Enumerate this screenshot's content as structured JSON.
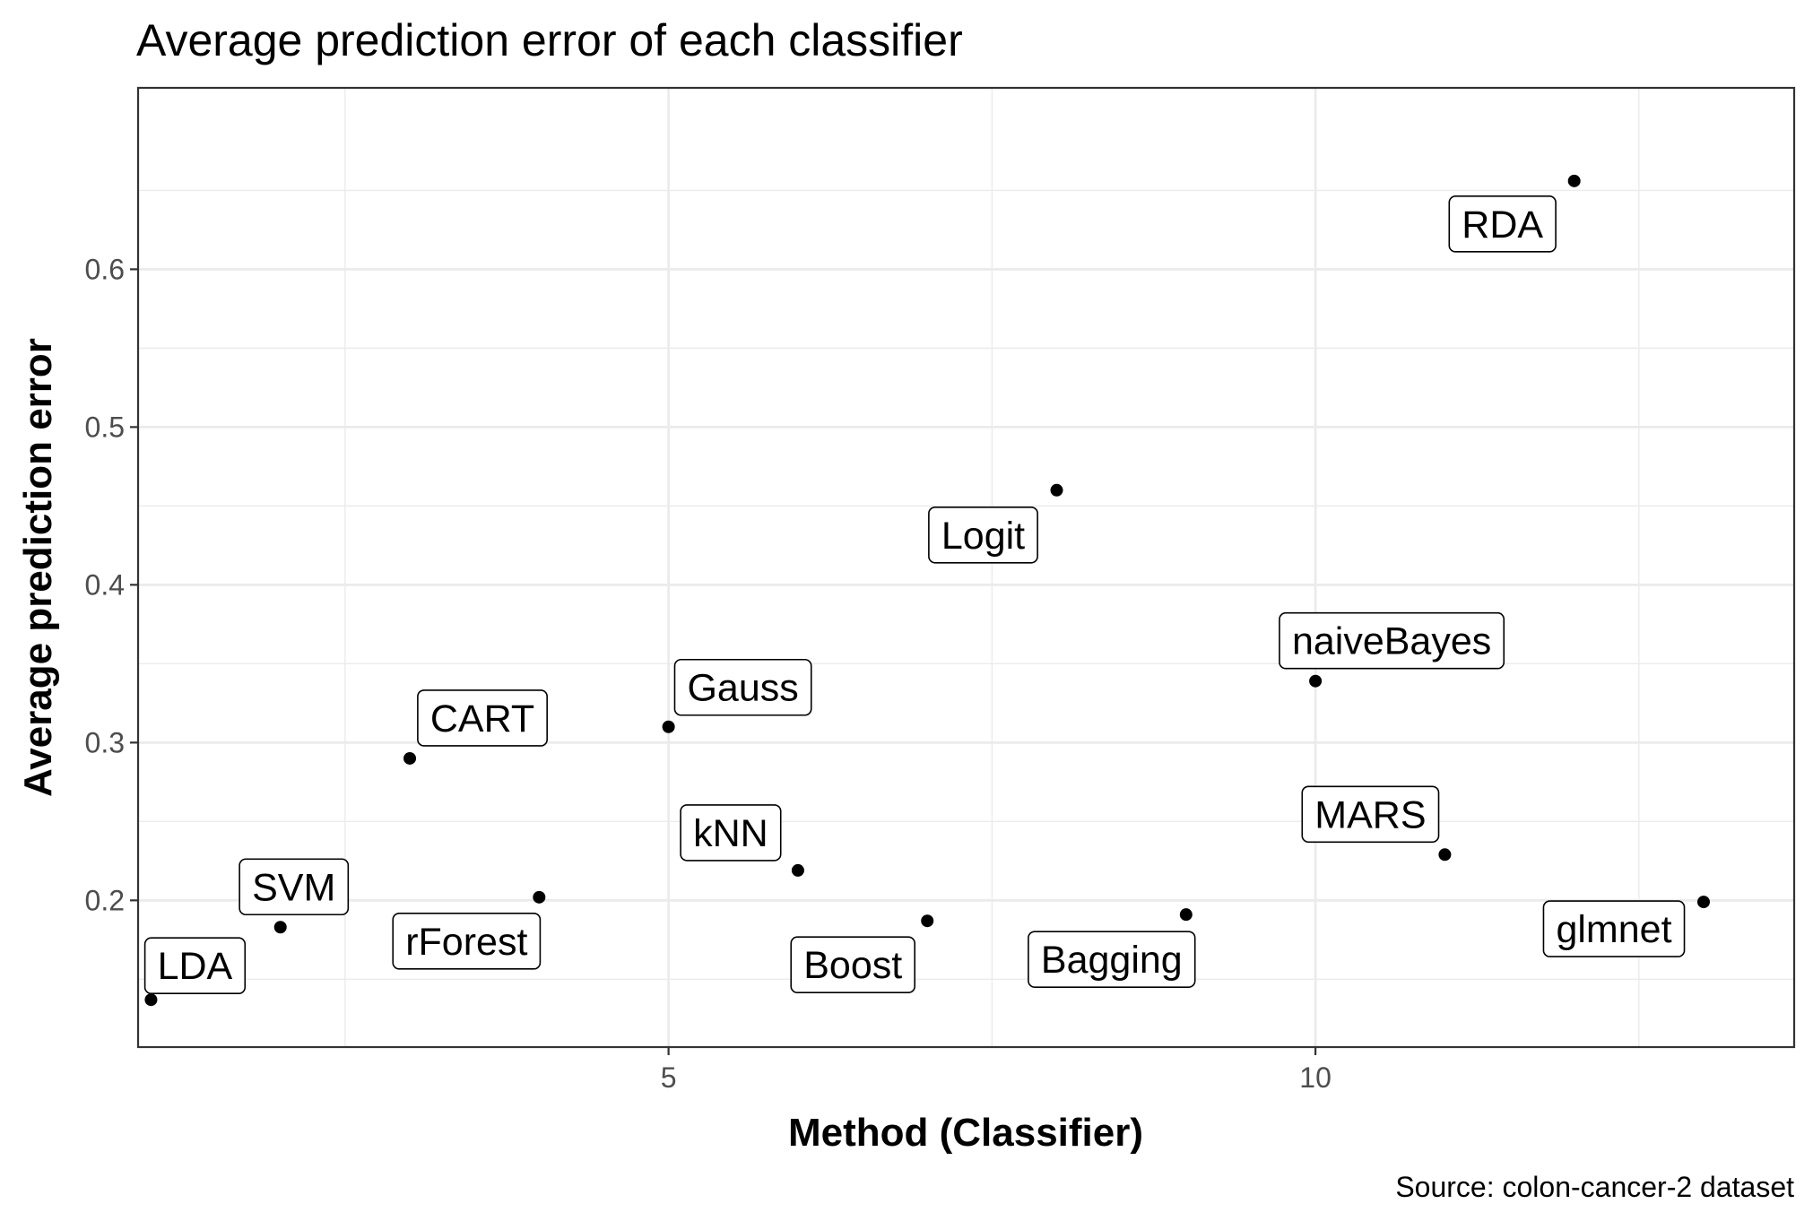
{
  "chart_data": {
    "type": "scatter",
    "title": "Average prediction error of each classifier",
    "xlabel": "Method (Classifier)",
    "ylabel": "Average prediction error",
    "caption": "Source: colon-cancer-2 dataset",
    "xlim": [
      0.9,
      13.7
    ],
    "ylim": [
      0.107,
      0.715
    ],
    "x_ticks": [
      5,
      10
    ],
    "x_tick_labels": [
      "5",
      "10"
    ],
    "y_ticks": [
      0.2,
      0.3,
      0.4,
      0.5,
      0.6
    ],
    "y_tick_labels": [
      "0.2",
      "0.3",
      "0.4",
      "0.5",
      "0.6"
    ],
    "grid": true,
    "legend": "none",
    "points": [
      {
        "x": 1,
        "y": 0.137,
        "label": "LDA"
      },
      {
        "x": 2,
        "y": 0.183,
        "label": "SVM"
      },
      {
        "x": 3,
        "y": 0.29,
        "label": "CART"
      },
      {
        "x": 4,
        "y": 0.202,
        "label": "rForest"
      },
      {
        "x": 5,
        "y": 0.31,
        "label": "Gauss"
      },
      {
        "x": 6,
        "y": 0.219,
        "label": "kNN"
      },
      {
        "x": 7,
        "y": 0.187,
        "label": "Boost"
      },
      {
        "x": 8,
        "y": 0.46,
        "label": "Logit"
      },
      {
        "x": 9,
        "y": 0.191,
        "label": "Bagging"
      },
      {
        "x": 10,
        "y": 0.339,
        "label": "naiveBayes"
      },
      {
        "x": 11,
        "y": 0.229,
        "label": "MARS"
      },
      {
        "x": 12,
        "y": 0.656,
        "label": "RDA"
      },
      {
        "x": 13,
        "y": 0.199,
        "label": "glmnet"
      }
    ]
  }
}
